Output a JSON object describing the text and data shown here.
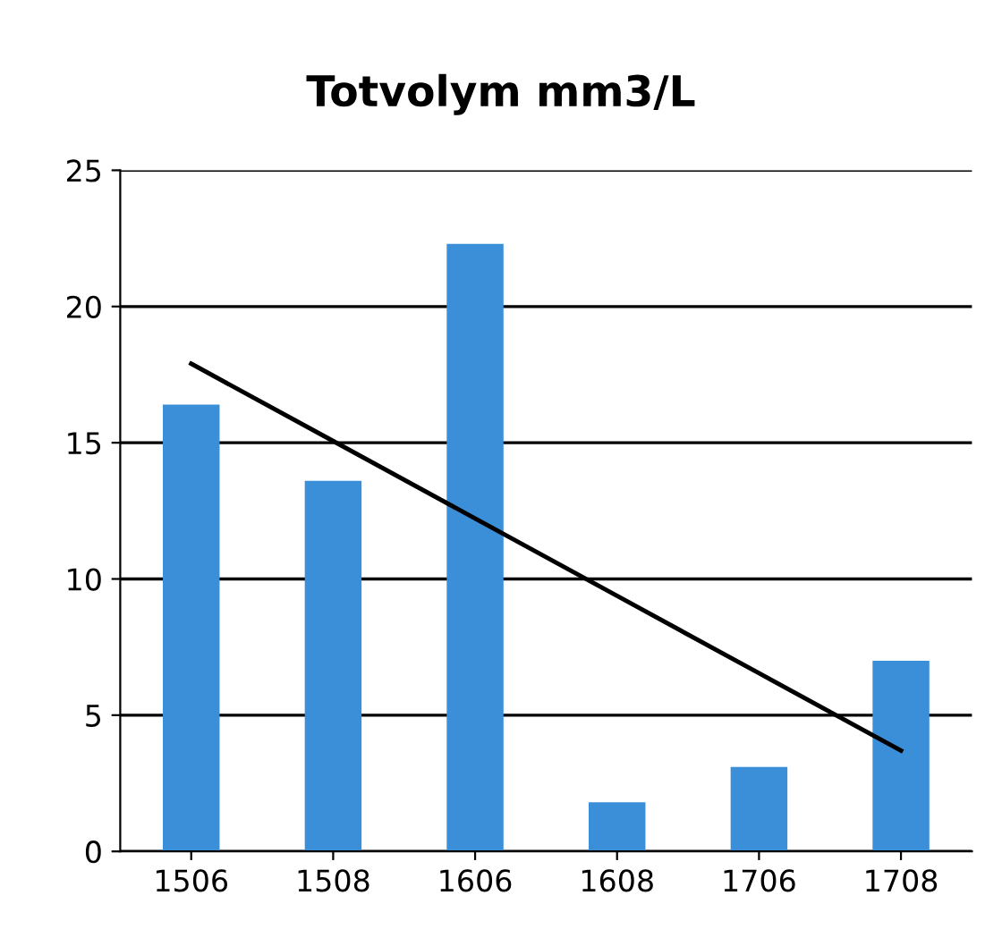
{
  "chart_data": {
    "type": "bar",
    "title": "Totvolym mm3/L",
    "categories": [
      "1506",
      "1508",
      "1606",
      "1608",
      "1706",
      "1708"
    ],
    "series": [
      {
        "color": "#3b8fd9",
        "values": [
          16.4,
          13.6,
          22.3,
          1.8,
          3.1,
          7.0
        ]
      },
      {
        "type": "line",
        "color": "#000000",
        "values": [
          17.9,
          15.06,
          12.22,
          9.38,
          6.54,
          3.7
        ]
      }
    ],
    "ylim": [
      0,
      25
    ],
    "yticks": [
      0,
      5,
      10,
      15,
      20,
      25
    ],
    "grid": "y",
    "legend": false
  }
}
